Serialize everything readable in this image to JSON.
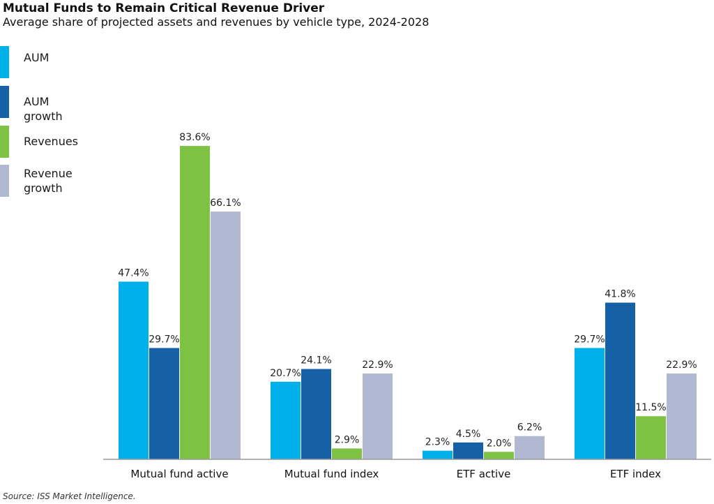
{
  "chart_data": {
    "type": "bar",
    "title": "Mutual Funds to Remain Critical Revenue Driver",
    "subtitle": "Average share of projected assets and revenues by vehicle type, 2024-2028",
    "categories": [
      "Mutual fund active",
      "Mutual fund index",
      "ETF active",
      "ETF index"
    ],
    "series": [
      {
        "name": "AUM",
        "color": "#00b0ea",
        "values": [
          47.4,
          20.7,
          2.3,
          29.7
        ],
        "labels": [
          "47.4%",
          "20.7%",
          "2.3%",
          "29.7%"
        ]
      },
      {
        "name": "AUM growth",
        "color": "#1660a6",
        "values": [
          29.7,
          24.1,
          4.5,
          41.8
        ],
        "labels": [
          "29.7%",
          "24.1%",
          "4.5%",
          "41.8%"
        ]
      },
      {
        "name": "Revenues",
        "color": "#7dc242",
        "values": [
          83.6,
          2.9,
          2.0,
          11.5
        ],
        "labels": [
          "83.6%",
          "2.9%",
          "2.0%",
          "11.5%"
        ]
      },
      {
        "name": "Revenue growth",
        "color": "#b1b8d2",
        "values": [
          66.1,
          22.9,
          6.2,
          22.9
        ],
        "labels": [
          "66.1%",
          "22.9%",
          "6.2%",
          "22.9%"
        ]
      }
    ],
    "legend_position": "top-left",
    "grid": false
  },
  "legend_labels": [
    "AUM",
    "AUM growth",
    "Revenues",
    "Revenue\ngrowth"
  ],
  "source": "Source: ISS Market Intelligence."
}
